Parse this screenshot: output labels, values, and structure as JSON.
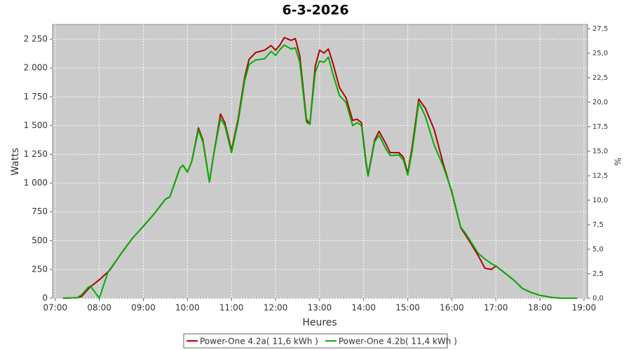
{
  "chart_data": {
    "type": "line",
    "title": "6-3-2026",
    "xlabel": "Heures",
    "ylabel": "Watts",
    "y2label": "%",
    "grid": true,
    "legend": "bottom",
    "x": [
      7.17,
      7.5,
      7.6,
      7.75,
      7.8,
      8.0,
      8.2,
      8.25,
      8.5,
      8.75,
      9.0,
      9.25,
      9.5,
      9.6,
      9.83,
      9.9,
      10.0,
      10.1,
      10.25,
      10.35,
      10.5,
      10.6,
      10.75,
      10.85,
      11.0,
      11.15,
      11.3,
      11.4,
      11.55,
      11.75,
      11.9,
      12.0,
      12.1,
      12.2,
      12.35,
      12.45,
      12.55,
      12.7,
      12.78,
      12.9,
      13.0,
      13.1,
      13.2,
      13.3,
      13.45,
      13.6,
      13.75,
      13.85,
      13.95,
      14.05,
      14.1,
      14.25,
      14.35,
      14.5,
      14.6,
      14.8,
      14.9,
      15.0,
      15.1,
      15.25,
      15.4,
      15.6,
      15.8,
      16.0,
      16.2,
      16.3,
      16.4,
      16.6,
      16.75,
      16.9,
      17.0,
      17.2,
      17.4,
      17.6,
      17.8,
      18.0,
      18.3,
      18.5,
      18.85
    ],
    "series": [
      {
        "name": "Power-One 4.2a( 11,6 kWh )",
        "color": "#b00000",
        "values": [
          0,
          5,
          15,
          80,
          100,
          160,
          230,
          250,
          390,
          520,
          625,
          735,
          860,
          880,
          1130,
          1155,
          1095,
          1190,
          1480,
          1375,
          1010,
          1255,
          1600,
          1525,
          1285,
          1555,
          1920,
          2075,
          2135,
          2155,
          2195,
          2155,
          2200,
          2265,
          2240,
          2255,
          2105,
          1555,
          1510,
          2015,
          2155,
          2130,
          2165,
          2045,
          1830,
          1740,
          1545,
          1555,
          1525,
          1190,
          1070,
          1375,
          1450,
          1345,
          1265,
          1265,
          1225,
          1085,
          1315,
          1730,
          1650,
          1465,
          1175,
          920,
          615,
          555,
          495,
          370,
          260,
          250,
          280,
          220,
          160,
          85,
          50,
          25,
          5,
          0,
          0
        ]
      },
      {
        "name": "Power-One 4.2b( 11,4 kWh )",
        "color": "#00b000",
        "values": [
          0,
          5,
          30,
          95,
          105,
          0,
          230,
          255,
          390,
          520,
          625,
          735,
          860,
          880,
          1130,
          1155,
          1095,
          1190,
          1460,
          1360,
          1010,
          1255,
          1560,
          1500,
          1265,
          1530,
          1890,
          2030,
          2070,
          2080,
          2145,
          2110,
          2160,
          2200,
          2165,
          2175,
          2050,
          1530,
          1510,
          1960,
          2060,
          2050,
          2095,
          1950,
          1760,
          1700,
          1500,
          1525,
          1500,
          1170,
          1060,
          1360,
          1415,
          1300,
          1240,
          1245,
          1200,
          1070,
          1280,
          1700,
          1580,
          1330,
          1150,
          930,
          620,
          570,
          510,
          390,
          340,
          300,
          280,
          220,
          160,
          85,
          50,
          25,
          5,
          0,
          0
        ]
      }
    ],
    "xlim": [
      6.94,
      19.08
    ],
    "xticks": [
      {
        "value": 7,
        "label": "07:00"
      },
      {
        "value": 8,
        "label": "08:00"
      },
      {
        "value": 9,
        "label": "09:00"
      },
      {
        "value": 10,
        "label": "10:00"
      },
      {
        "value": 11,
        "label": "11:00"
      },
      {
        "value": 12,
        "label": "12:00"
      },
      {
        "value": 13,
        "label": "13:00"
      },
      {
        "value": 14,
        "label": "14:00"
      },
      {
        "value": 15,
        "label": "15:00"
      },
      {
        "value": 16,
        "label": "16:00"
      },
      {
        "value": 17,
        "label": "17:00"
      },
      {
        "value": 18,
        "label": "18:00"
      },
      {
        "value": 19,
        "label": "19:00"
      }
    ],
    "ylim": [
      0,
      2378
    ],
    "yticks": [
      0,
      250,
      500,
      750,
      {
        "value": 1000,
        "label": "1 000"
      },
      {
        "value": 1250,
        "label": "1 250"
      },
      {
        "value": 1500,
        "label": "1 500"
      },
      {
        "value": 1750,
        "label": "1 750"
      },
      {
        "value": 2000,
        "label": "2 000"
      },
      {
        "value": 2250,
        "label": "2 250"
      }
    ],
    "y2lim": [
      0,
      27.93
    ],
    "y2ticks": [
      {
        "value": 0,
        "label": "0,0"
      },
      {
        "value": 2.5,
        "label": "2,5"
      },
      {
        "value": 5,
        "label": "5,0"
      },
      {
        "value": 7.5,
        "label": "7,5"
      },
      {
        "value": 10,
        "label": "10,0"
      },
      {
        "value": 12.5,
        "label": "12,5"
      },
      {
        "value": 15,
        "label": "15,0"
      },
      {
        "value": 17.5,
        "label": "17,5"
      },
      {
        "value": 20,
        "label": "20,0"
      },
      {
        "value": 22.5,
        "label": "22,5"
      },
      {
        "value": 25,
        "label": "25,0"
      },
      {
        "value": 27.5,
        "label": "27,5"
      }
    ]
  }
}
